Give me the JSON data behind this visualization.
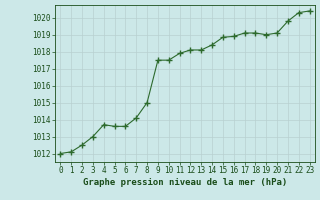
{
  "x": [
    0,
    1,
    2,
    3,
    4,
    5,
    6,
    7,
    8,
    9,
    10,
    11,
    12,
    13,
    14,
    15,
    16,
    17,
    18,
    19,
    20,
    21,
    22,
    23
  ],
  "y": [
    1012.0,
    1012.1,
    1012.5,
    1013.0,
    1013.7,
    1013.6,
    1013.6,
    1014.1,
    1015.0,
    1017.5,
    1017.5,
    1017.9,
    1018.1,
    1018.1,
    1018.4,
    1018.85,
    1018.9,
    1019.1,
    1019.1,
    1019.0,
    1019.1,
    1019.8,
    1020.3,
    1020.4
  ],
  "line_color": "#2d6a2d",
  "marker": "D",
  "marker_size": 2.5,
  "bg_color": "#cce8e8",
  "grid_color": "#b8d0d0",
  "xlabel": "Graphe pression niveau de la mer (hPa)",
  "xlabel_color": "#1a4d1a",
  "tick_color": "#1a4d1a",
  "ylim_min": 1011.5,
  "ylim_max": 1020.75,
  "xlim_min": -0.5,
  "xlim_max": 23.5,
  "yticks": [
    1012,
    1013,
    1014,
    1015,
    1016,
    1017,
    1018,
    1019,
    1020
  ],
  "xticks": [
    0,
    1,
    2,
    3,
    4,
    5,
    6,
    7,
    8,
    9,
    10,
    11,
    12,
    13,
    14,
    15,
    16,
    17,
    18,
    19,
    20,
    21,
    22,
    23
  ],
  "tick_fontsize": 5.5,
  "xlabel_fontsize": 6.5
}
